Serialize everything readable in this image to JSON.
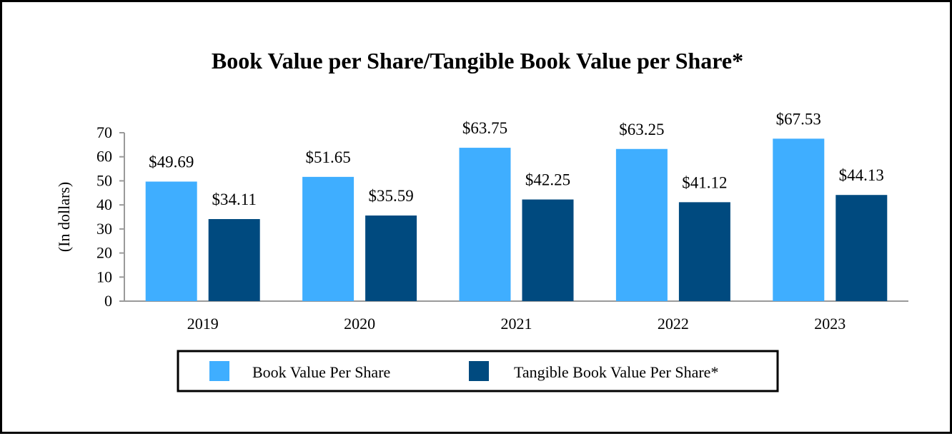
{
  "chart_data": {
    "type": "bar",
    "title": "Book Value per Share/Tangible Book Value per Share*",
    "ylabel": "(In dollars)",
    "xlabel": "",
    "categories": [
      "2019",
      "2020",
      "2021",
      "2022",
      "2023"
    ],
    "series": [
      {
        "name": "Book Value Per Share",
        "color": "#3FAEFF",
        "values": [
          49.69,
          51.65,
          63.75,
          63.25,
          67.53
        ],
        "labels": [
          "$49.69",
          "$51.65",
          "$63.75",
          "$63.25",
          "$67.53"
        ]
      },
      {
        "name": "Tangible Book Value Per Share*",
        "color": "#004A7F",
        "values": [
          34.11,
          35.59,
          42.25,
          41.12,
          44.13
        ],
        "labels": [
          "$34.11",
          "$35.59",
          "$42.25",
          "$41.12",
          "$44.13"
        ]
      }
    ],
    "ylim": [
      0,
      70
    ],
    "yticks": [
      0,
      10,
      20,
      30,
      40,
      50,
      60,
      70
    ],
    "grid": false,
    "legend": "bottom"
  }
}
